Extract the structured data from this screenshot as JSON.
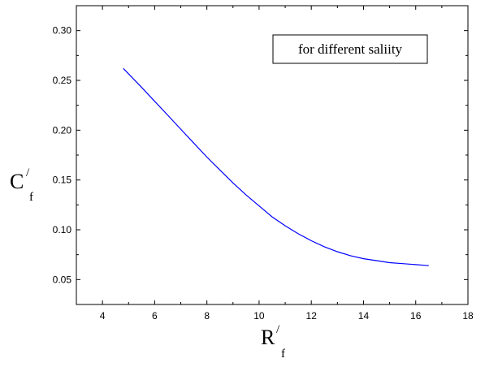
{
  "chart_data": {
    "type": "line",
    "title": "",
    "xlabel": "R",
    "xlabel_prime": "/",
    "xlabel_sub": "f",
    "ylabel": "C",
    "ylabel_prime": "/",
    "ylabel_sub": "f",
    "xlim": [
      3,
      18
    ],
    "ylim": [
      0.025,
      0.325
    ],
    "x_ticks": [
      4,
      6,
      8,
      10,
      12,
      14,
      16,
      18
    ],
    "x_tick_labels": [
      "4",
      "6",
      "8",
      "10",
      "12",
      "14",
      "16",
      "18"
    ],
    "y_ticks": [
      0.05,
      0.1,
      0.15,
      0.2,
      0.25,
      0.3
    ],
    "y_tick_labels": [
      "0.05",
      "0.10",
      "0.15",
      "0.20",
      "0.25",
      "0.30"
    ],
    "grid": false,
    "annotation": "for different saliity",
    "annotation_position": "top-right",
    "series": [
      {
        "color": "#0000ff",
        "x": [
          4.8,
          5.5,
          6,
          6.5,
          7,
          7.5,
          8,
          8.5,
          9,
          9.5,
          10,
          10.5,
          11,
          11.5,
          12,
          12.5,
          13,
          13.5,
          14,
          14.5,
          15,
          15.5,
          16,
          16.5
        ],
        "y": [
          0.262,
          0.243,
          0.229,
          0.215,
          0.201,
          0.187,
          0.173,
          0.16,
          0.147,
          0.135,
          0.124,
          0.113,
          0.104,
          0.096,
          0.089,
          0.083,
          0.078,
          0.074,
          0.071,
          0.069,
          0.067,
          0.066,
          0.065,
          0.064
        ]
      }
    ]
  }
}
